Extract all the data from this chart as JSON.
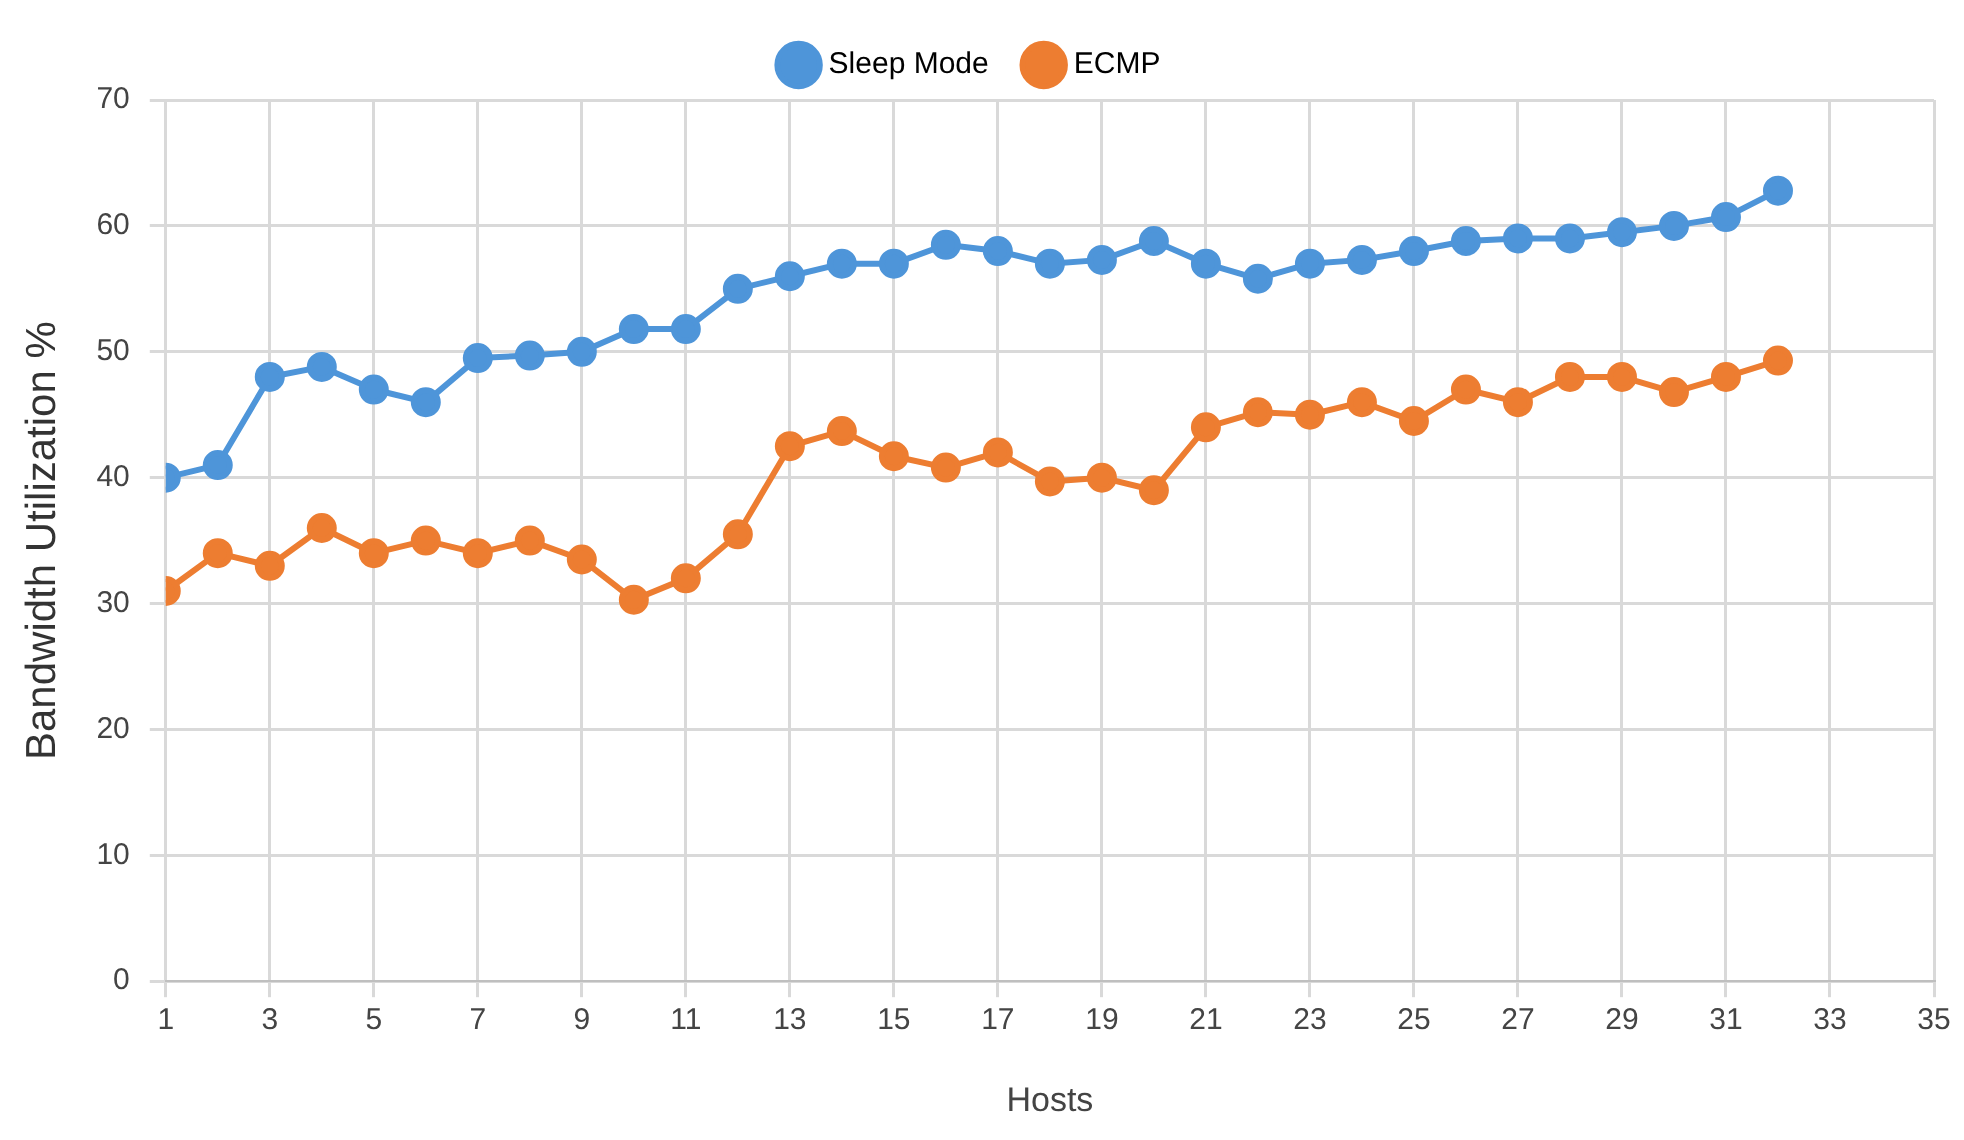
{
  "chart_data": {
    "type": "line",
    "xlabel": "Hosts",
    "ylabel": "Bandwidth Utilization %",
    "x": [
      1,
      2,
      3,
      4,
      5,
      6,
      7,
      8,
      9,
      10,
      11,
      12,
      13,
      14,
      15,
      16,
      17,
      18,
      19,
      20,
      21,
      22,
      23,
      24,
      25,
      26,
      27,
      28,
      29,
      30,
      31,
      32
    ],
    "series": [
      {
        "name": "Sleep Mode",
        "color": "#4e95d9",
        "values": [
          40,
          41,
          48,
          48.8,
          47,
          46,
          49.5,
          49.7,
          50,
          51.8,
          51.8,
          55,
          56,
          57,
          57,
          58.5,
          58,
          57,
          57.3,
          58.8,
          57,
          55.8,
          57,
          57.3,
          58,
          58.8,
          59,
          59,
          59.5,
          60,
          60.7,
          62.8
        ]
      },
      {
        "name": "ECMP",
        "color": "#ed7d31",
        "values": [
          31,
          34,
          33,
          36,
          34,
          35,
          34,
          35,
          33.5,
          30.3,
          32,
          35.5,
          42.5,
          43.7,
          41.7,
          40.8,
          42,
          39.7,
          40,
          39,
          44,
          45.2,
          45,
          46,
          44.5,
          47,
          46,
          48,
          48,
          46.8,
          48,
          49.3
        ]
      }
    ],
    "xlim": [
      1,
      35
    ],
    "xticks": [
      1,
      3,
      5,
      7,
      9,
      11,
      13,
      15,
      17,
      19,
      21,
      23,
      25,
      27,
      29,
      31,
      33,
      35
    ],
    "ylim": [
      0,
      70
    ],
    "yticks": [
      0,
      10,
      20,
      30,
      40,
      50,
      60,
      70
    ],
    "grid": true,
    "legend": "top",
    "marker": "circle",
    "line_style": "solid"
  }
}
